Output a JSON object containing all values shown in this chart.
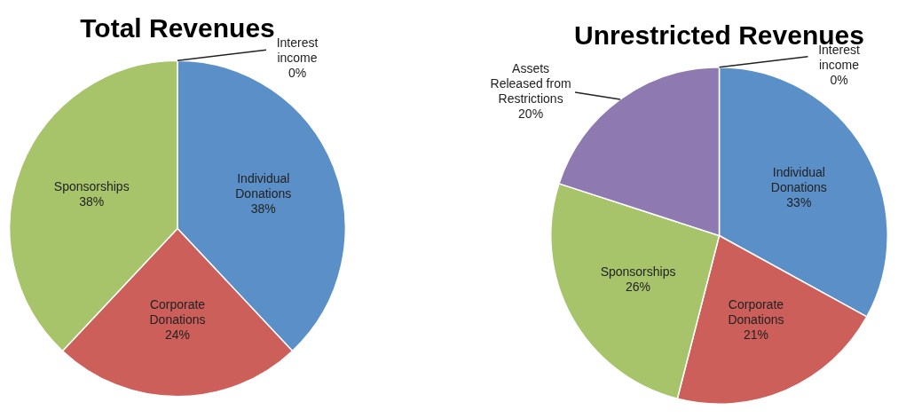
{
  "chart_data": [
    {
      "type": "pie",
      "title": "Total Revenues",
      "categories": [
        "Individual Donations",
        "Corporate Donations",
        "Sponsorships",
        "Interest income"
      ],
      "values": [
        38,
        24,
        38,
        0
      ],
      "colors": [
        "#5b8fc8",
        "#cd5f5b",
        "#a7c46b",
        "#4bb1d8"
      ],
      "value_labels": [
        "38%",
        "24%",
        "38%",
        "0%"
      ]
    },
    {
      "type": "pie",
      "title": "Unrestricted Revenues",
      "categories": [
        "Individual Donations",
        "Corporate Donations",
        "Sponsorships",
        "Assets Released from Restrictions",
        "Interest income"
      ],
      "values": [
        33,
        21,
        26,
        20,
        0
      ],
      "colors": [
        "#5b8fc8",
        "#cd5f5b",
        "#a7c46b",
        "#8e79b1",
        "#4bb1d8"
      ],
      "value_labels": [
        "33%",
        "21%",
        "26%",
        "20%",
        "0%"
      ]
    }
  ]
}
